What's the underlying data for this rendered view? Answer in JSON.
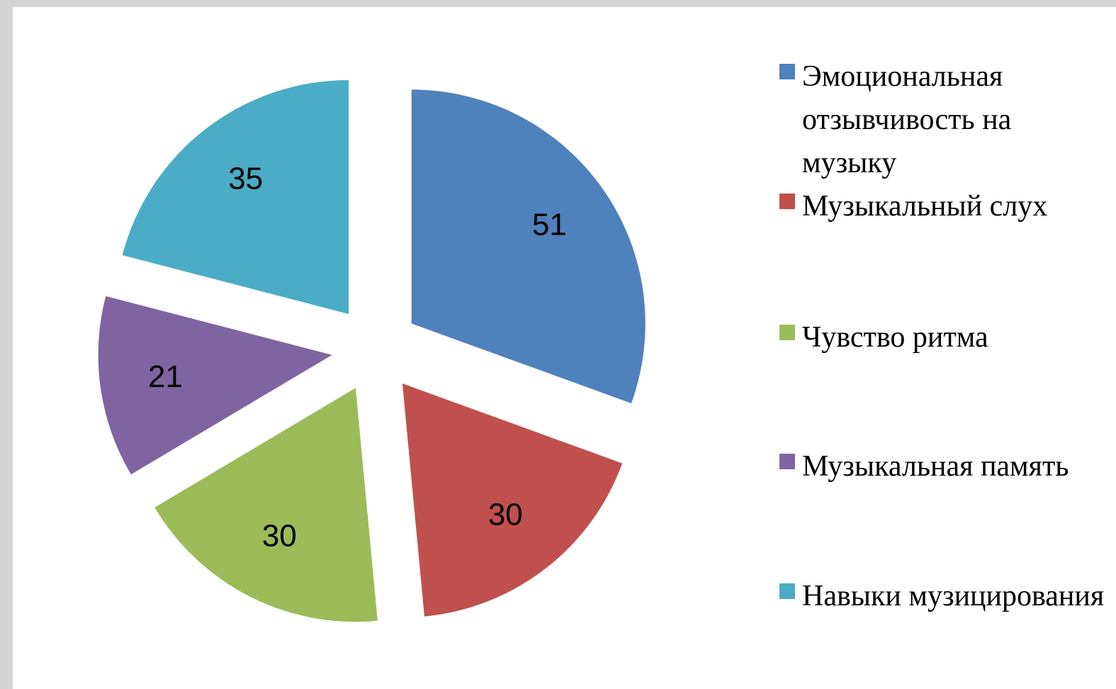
{
  "chart_data": {
    "type": "pie",
    "categories": [
      "Эмоциональная отзывчивость на музыку",
      "Музыкальный слух",
      "Чувство ритма",
      "Музыкальная память",
      "Навыки музицирования"
    ],
    "values": [
      51,
      30,
      30,
      21,
      35
    ],
    "colors": [
      "#4f81bd",
      "#c0504d",
      "#9bbb59",
      "#8064a2",
      "#4bacc6"
    ],
    "exploded": true,
    "legend": "right"
  }
}
